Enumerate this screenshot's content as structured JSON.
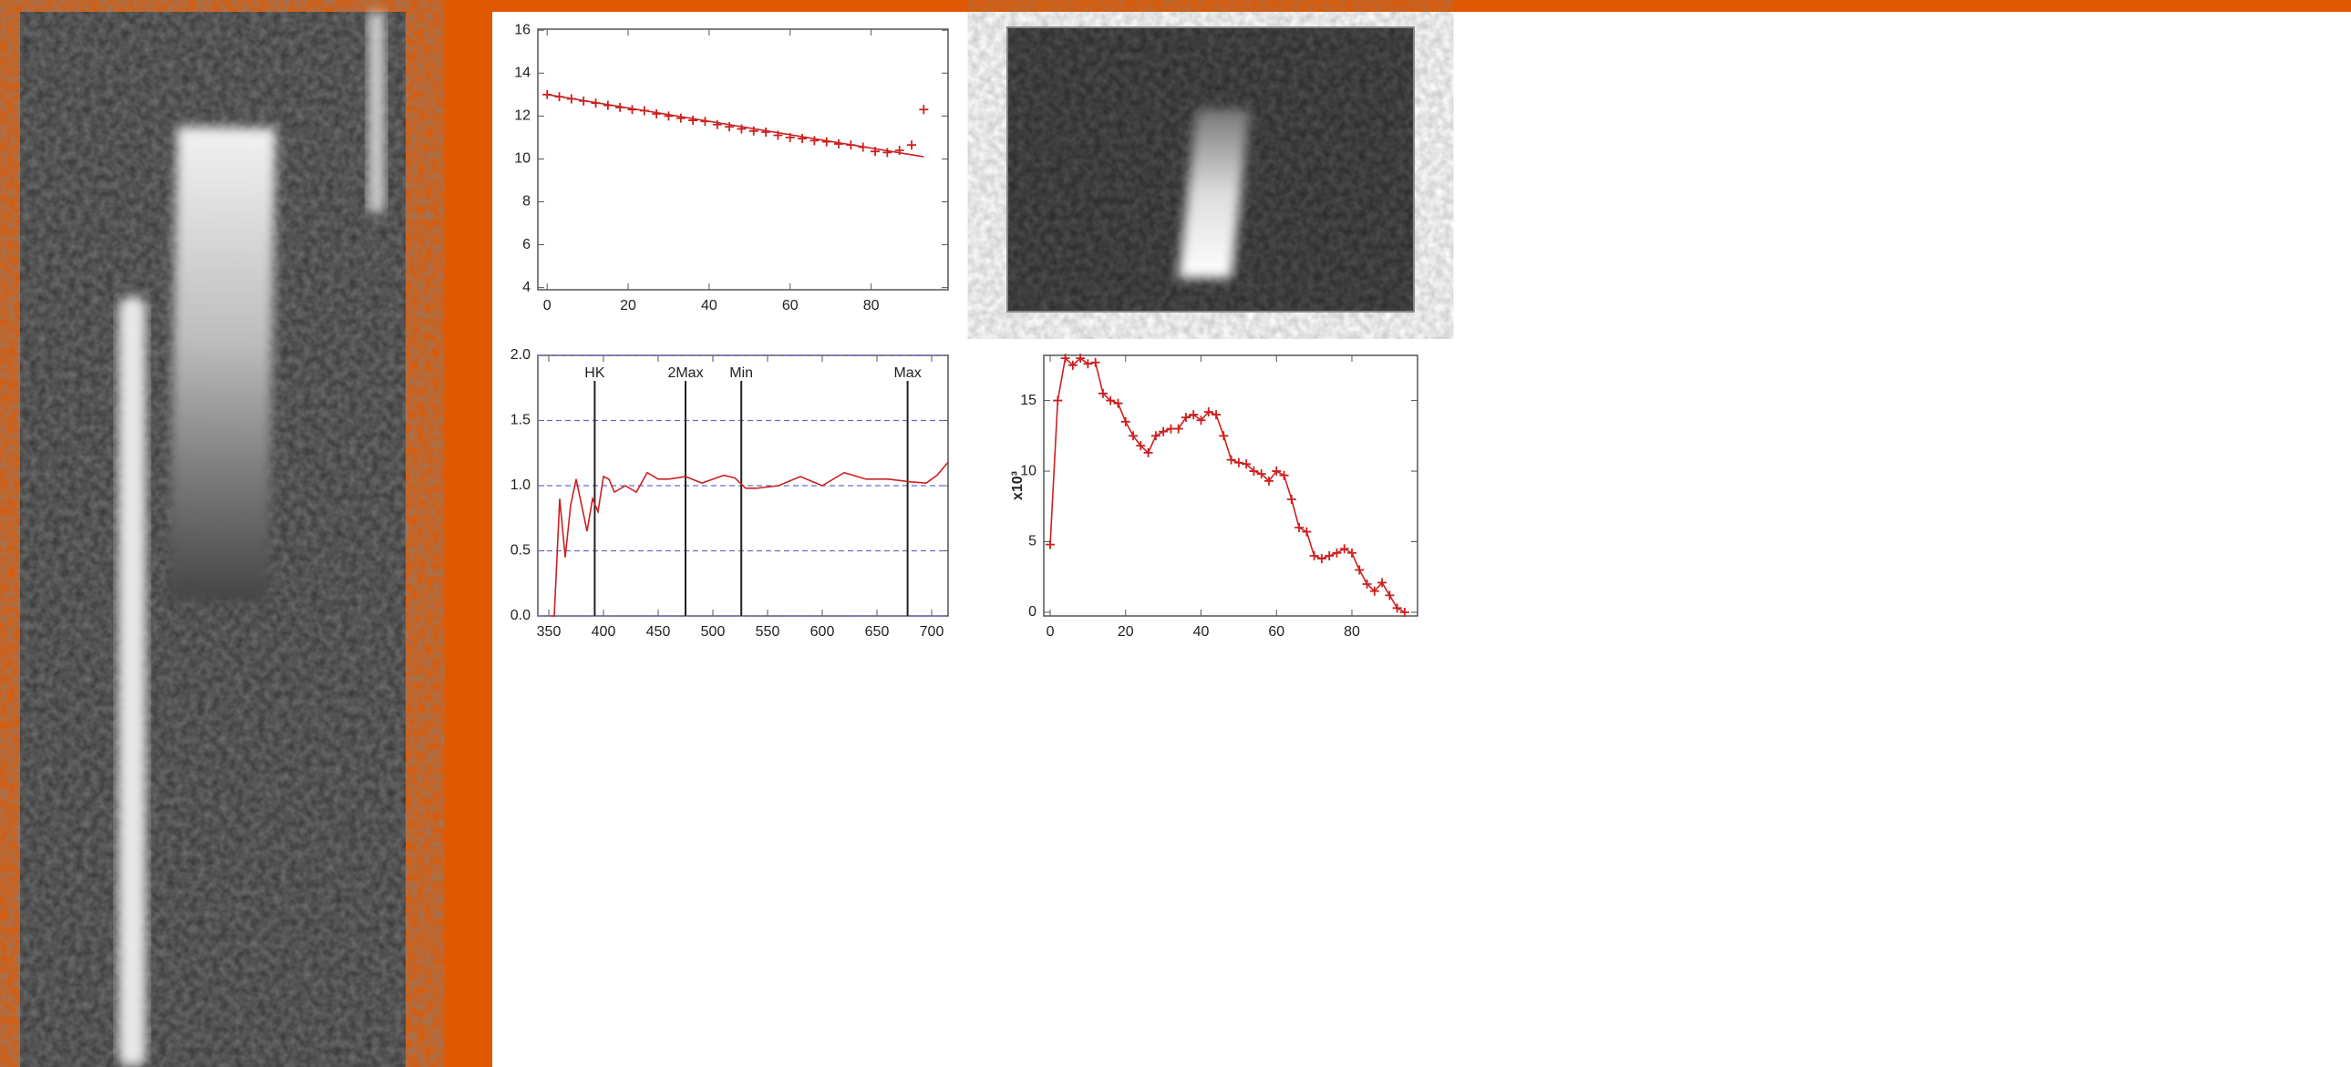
{
  "chart_data": [
    {
      "type": "scatter",
      "x": [
        0,
        3,
        6,
        9,
        12,
        15,
        18,
        21,
        24,
        27,
        30,
        33,
        36,
        39,
        42,
        45,
        48,
        51,
        54,
        57,
        60,
        63,
        66,
        69,
        72,
        75,
        78,
        81,
        84,
        87,
        90,
        93
      ],
      "series": [
        {
          "color": "#cc2020",
          "marker": "plus",
          "line": false,
          "values": [
            13.0,
            12.9,
            12.8,
            12.7,
            12.6,
            12.5,
            12.4,
            12.3,
            12.25,
            12.1,
            12.0,
            11.9,
            11.8,
            11.75,
            11.6,
            11.5,
            11.4,
            11.3,
            11.25,
            11.1,
            11.0,
            10.95,
            10.85,
            10.8,
            10.7,
            10.65,
            10.55,
            10.35,
            10.3,
            10.4,
            10.65,
            12.3
          ]
        },
        {
          "color": "#cc2020",
          "line": true,
          "x": [
            0,
            93
          ],
          "values": [
            13.0,
            10.1
          ]
        }
      ],
      "xlim": [
        -2.3,
        99
      ],
      "xticks": [
        0,
        20,
        40,
        60,
        80
      ],
      "ylim": [
        3.9,
        16.05
      ],
      "yticks": [
        4,
        6,
        8,
        10,
        12,
        14,
        16
      ]
    },
    {
      "type": "line",
      "x": [
        352,
        355,
        360,
        365,
        370,
        375,
        380,
        385,
        390,
        395,
        400,
        405,
        410,
        420,
        430,
        440,
        450,
        460,
        475,
        490,
        500,
        510,
        520,
        530,
        540,
        560,
        580,
        600,
        620,
        640,
        660,
        680,
        695,
        705,
        715
      ],
      "series": [
        {
          "color": "#cc2020",
          "line": true,
          "values": [
            0,
            0,
            0.9,
            0.45,
            0.85,
            1.05,
            0.85,
            0.65,
            0.9,
            0.8,
            1.07,
            1.05,
            0.95,
            1.0,
            0.95,
            1.1,
            1.05,
            1.05,
            1.07,
            1.02,
            1.05,
            1.08,
            1.06,
            0.98,
            0.98,
            1.0,
            1.07,
            1.0,
            1.1,
            1.05,
            1.05,
            1.03,
            1.02,
            1.08,
            1.18
          ]
        }
      ],
      "xlim": [
        340,
        715
      ],
      "xticks": [
        350,
        400,
        450,
        500,
        550,
        600,
        650,
        700
      ],
      "ylim": [
        0,
        2
      ],
      "yticks": [
        {
          "value": 0,
          "label": "0.0"
        },
        {
          "value": 0.5,
          "label": "0.5"
        },
        {
          "value": 1,
          "label": "1.0"
        },
        {
          "value": 1.5,
          "label": "1.5"
        },
        {
          "value": 2,
          "label": "2.0"
        }
      ],
      "grid": true,
      "grid_color": "#6a6acc",
      "vlines": [
        {
          "x": 392,
          "label": "HK"
        },
        {
          "x": 475,
          "label": "2Max"
        },
        {
          "x": 526,
          "label": "Min"
        },
        {
          "x": 678,
          "label": "Max"
        }
      ]
    },
    {
      "type": "line",
      "x": [
        0,
        2,
        4,
        6,
        8,
        10,
        12,
        14,
        16,
        18,
        20,
        22,
        24,
        26,
        28,
        30,
        32,
        34,
        36,
        38,
        40,
        42,
        44,
        46,
        48,
        50,
        52,
        54,
        56,
        58,
        60,
        62,
        64,
        66,
        68,
        70,
        72,
        74,
        76,
        78,
        80,
        82,
        84,
        86,
        88,
        90,
        92,
        94
      ],
      "series": [
        {
          "color": "#cc2020",
          "marker": "plus",
          "line": true,
          "values": [
            4.8,
            15,
            18,
            17.5,
            18,
            17.6,
            17.7,
            15.5,
            15,
            14.8,
            13.5,
            12.5,
            11.8,
            11.3,
            12.5,
            12.8,
            13,
            13,
            13.8,
            14,
            13.6,
            14.2,
            14,
            12.5,
            10.8,
            10.6,
            10.5,
            10,
            9.8,
            9.3,
            10,
            9.7,
            8,
            6,
            5.7,
            4,
            3.8,
            4,
            4.2,
            4.5,
            4.2,
            3,
            2,
            1.5,
            2.1,
            1.2,
            0.3,
            0
          ]
        }
      ],
      "ylabel": "x10³",
      "xlim": [
        -1.7,
        97.4
      ],
      "xticks": [
        0,
        20,
        40,
        60,
        80
      ],
      "ylim": [
        -0.26,
        18.2
      ],
      "yticks": [
        0,
        5,
        10,
        15
      ]
    }
  ]
}
